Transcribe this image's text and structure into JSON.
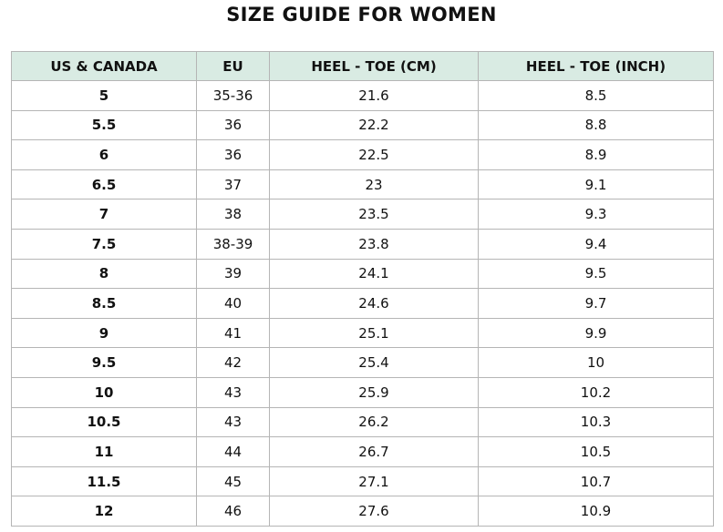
{
  "title": "SIZE GUIDE FOR WOMEN",
  "table": {
    "header": [
      "US & CANADA",
      "EU",
      "HEEL - TOE (CM)",
      "HEEL - TOE (INCH)"
    ],
    "rows": [
      [
        "5",
        "35-36",
        "21.6",
        "8.5"
      ],
      [
        "5.5",
        "36",
        "22.2",
        "8.8"
      ],
      [
        "6",
        "36",
        "22.5",
        "8.9"
      ],
      [
        "6.5",
        "37",
        "23",
        "9.1"
      ],
      [
        "7",
        "38",
        "23.5",
        "9.3"
      ],
      [
        "7.5",
        "38-39",
        "23.8",
        "9.4"
      ],
      [
        "8",
        "39",
        "24.1",
        "9.5"
      ],
      [
        "8.5",
        "40",
        "24.6",
        "9.7"
      ],
      [
        "9",
        "41",
        "25.1",
        "9.9"
      ],
      [
        "9.5",
        "42",
        "25.4",
        "10"
      ],
      [
        "10",
        "43",
        "25.9",
        "10.2"
      ],
      [
        "10.5",
        "43",
        "26.2",
        "10.3"
      ],
      [
        "11",
        "44",
        "26.7",
        "10.5"
      ],
      [
        "11.5",
        "45",
        "27.1",
        "10.7"
      ],
      [
        "12",
        "46",
        "27.6",
        "10.9"
      ]
    ]
  }
}
